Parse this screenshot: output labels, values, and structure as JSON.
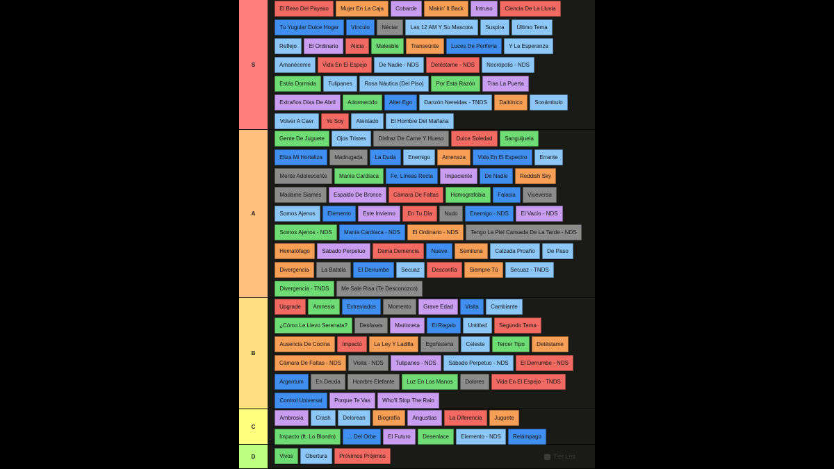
{
  "watermark": "Tier List",
  "tiers": [
    {
      "label": "S",
      "color": "#ff7f7f",
      "rows": [
        [
          [
            "El Beso Del Payaso",
            "red"
          ],
          [
            "Mujer En La Caja",
            "orange"
          ],
          [
            "Cobarde",
            "lavender"
          ],
          [
            "Makin' It Back",
            "orange"
          ],
          [
            "Intruso",
            "lavender"
          ],
          [
            "Ciencia De La Lluvia",
            "red"
          ]
        ],
        [
          [
            "Tu Yugular Dulce Hogar",
            "blue"
          ],
          [
            "Vínculo",
            "blue"
          ],
          [
            "Néctar",
            "gray"
          ],
          [
            "Las 12 AM Y Su Mascota",
            "lightblue"
          ],
          [
            "Suspira",
            "lightblue"
          ],
          [
            "Último Tema",
            "lightblue"
          ]
        ],
        [
          [
            "Reflejo",
            "lightblue"
          ],
          [
            "El Ordinario",
            "lavender"
          ],
          [
            "Alicia",
            "red"
          ],
          [
            "Maleable",
            "green"
          ],
          [
            "Transeúnte",
            "orange"
          ],
          [
            "Luces De Periferia",
            "blue"
          ],
          [
            "Y La Esperanza",
            "lightblue"
          ]
        ],
        [
          [
            "Amanéceme",
            "lightblue"
          ],
          [
            "Vida En El Espejo",
            "red"
          ],
          [
            "De Nadie - NDS",
            "lightblue"
          ],
          [
            "Detéstame - NDS",
            "red"
          ],
          [
            "Necrópolis - NDS",
            "lightblue"
          ]
        ],
        [
          [
            "Estás Dormida",
            "green"
          ],
          [
            "Tulipanes",
            "lightblue"
          ],
          [
            "Rosa Náutica (Del Piso)",
            "lightblue"
          ],
          [
            "Por Esta Razón",
            "green"
          ],
          [
            "Tras La Puerta",
            "lavender"
          ]
        ],
        [
          [
            "Extraños Días De Abril",
            "lavender"
          ],
          [
            "Adormecido",
            "green"
          ],
          [
            "Alter Ego",
            "blue"
          ],
          [
            "Danzón Nereidas - TNDS",
            "lightblue"
          ],
          [
            "Daltónico",
            "orange"
          ],
          [
            "Sonámbulo",
            "lightblue"
          ]
        ],
        [
          [
            "Volver A Caer",
            "lightblue"
          ],
          [
            "Yo Soy",
            "red"
          ],
          [
            "Atentado",
            "lightblue"
          ],
          [
            "El Hombre Del Mañana",
            "lightblue"
          ]
        ]
      ]
    },
    {
      "label": "A",
      "color": "#ffbf7f",
      "rows": [
        [
          [
            "Gente De Juguete",
            "green"
          ],
          [
            "Ojos Tristes",
            "lightblue"
          ],
          [
            "Disfraz De Carne Y Hueso",
            "gray"
          ],
          [
            "Dulce Soledad",
            "red"
          ],
          [
            "Sanguijuela",
            "green"
          ]
        ],
        [
          [
            "Eliza Mi Hortaliza",
            "blue"
          ],
          [
            "Madrugada",
            "gray"
          ],
          [
            "La Duda",
            "blue"
          ],
          [
            "Enemigo",
            "lightblue"
          ],
          [
            "Amenaza",
            "orange"
          ],
          [
            "Vida En El Espectro",
            "blue"
          ],
          [
            "Errante",
            "lightblue"
          ]
        ],
        [
          [
            "Mente Adolescente",
            "gray"
          ],
          [
            "Manía Cardíaca",
            "green"
          ],
          [
            "Fe, Líneas Recta",
            "blue"
          ],
          [
            "Impaciente",
            "lavender"
          ],
          [
            "De Nadie",
            "blue"
          ],
          [
            "Reddish Sky",
            "orange"
          ]
        ],
        [
          [
            "Madame Siamés",
            "gray"
          ],
          [
            "Espaldo De Bronce",
            "lavender"
          ],
          [
            "Cámara De Faltas",
            "red"
          ],
          [
            "Homografobia",
            "green"
          ],
          [
            "Falacia",
            "blue"
          ],
          [
            "Viceversa",
            "gray"
          ]
        ],
        [
          [
            "Somos Ajenos",
            "lightblue"
          ],
          [
            "Elemento",
            "blue"
          ],
          [
            "Este Invierno",
            "lavender"
          ],
          [
            "En Tu Día",
            "red"
          ],
          [
            "Nudo",
            "gray"
          ],
          [
            "Enemigo - NDS",
            "blue"
          ],
          [
            "El Vacío - NDS",
            "lavender"
          ]
        ],
        [
          [
            "Somos Ajenos - NDS",
            "green"
          ],
          [
            "Manía Cardíaca - NDS",
            "blue"
          ],
          [
            "El Ordinario - NDS",
            "orange"
          ],
          [
            "Tengo La Piel Cansada De La Tarde - NDS",
            "gray"
          ]
        ],
        [
          [
            "Hematófago",
            "orange"
          ],
          [
            "Sábado Perpetuo",
            "lavender"
          ],
          [
            "Dama Demencia",
            "red"
          ],
          [
            "Nueve",
            "blue"
          ],
          [
            "Semiluna",
            "orange"
          ],
          [
            "Calzada Proaño",
            "lightblue"
          ],
          [
            "De Paso",
            "lightblue"
          ]
        ],
        [
          [
            "Divergencia",
            "orange"
          ],
          [
            "La Batalla",
            "gray"
          ],
          [
            "El Derrumbe",
            "blue"
          ],
          [
            "Secuaz",
            "lightblue"
          ],
          [
            "Desconfía",
            "red"
          ],
          [
            "Siempre Tú",
            "orange"
          ],
          [
            "Secuaz - TNDS",
            "lightblue"
          ]
        ],
        [
          [
            "Divergencia - TNDS",
            "green"
          ],
          [
            "Me Sale Risa (Te Desconozco)",
            "gray"
          ]
        ]
      ]
    },
    {
      "label": "B",
      "color": "#ffdf7f",
      "rows": [
        [
          [
            "Upgrade",
            "red"
          ],
          [
            "Amnesia",
            "green"
          ],
          [
            "Extraviados",
            "blue"
          ],
          [
            "Momento",
            "gray"
          ],
          [
            "Grave Edad",
            "lavender"
          ],
          [
            "Visita",
            "blue"
          ],
          [
            "Cambiante",
            "lightblue"
          ]
        ],
        [
          [
            "¿Cómo Le Llevo Serenata?",
            "green"
          ],
          [
            "Desfases",
            "gray"
          ],
          [
            "Marioneta",
            "lavender"
          ],
          [
            "El Regalo",
            "blue"
          ],
          [
            "Untitled",
            "lightblue"
          ],
          [
            "Segundo Tema",
            "red"
          ]
        ],
        [
          [
            "Ausencia De Cocina",
            "orange"
          ],
          [
            "Impacto",
            "red"
          ],
          [
            "La Ley Y Ladilla",
            "orange"
          ],
          [
            "Egohisteria",
            "gray"
          ],
          [
            "Celeste",
            "lightblue"
          ],
          [
            "Tercer Tipo",
            "green"
          ],
          [
            "Detéstame",
            "orange"
          ]
        ],
        [
          [
            "Cámara De Faltas - NDS",
            "orange"
          ],
          [
            "Visita - NDS",
            "gray"
          ],
          [
            "Tulipanes - NDS",
            "lavender"
          ],
          [
            "Sábado Perpetuo - NDS",
            "lightblue"
          ],
          [
            "El Derrumbe - NDS",
            "red"
          ]
        ],
        [
          [
            "Argentum",
            "blue"
          ],
          [
            "En Deuda",
            "gray"
          ],
          [
            "Hombre Elefante",
            "gray"
          ],
          [
            "Luz En Los Manos",
            "green"
          ],
          [
            "Dolores",
            "gray"
          ],
          [
            "Vida En El Espejo - TNDS",
            "red"
          ]
        ],
        [
          [
            "Control Universal",
            "blue"
          ],
          [
            "Porque Te Vas",
            "lavender"
          ],
          [
            "Who'll Stop The Rain",
            "lavender"
          ]
        ]
      ]
    },
    {
      "label": "C",
      "color": "#ffff7f",
      "rows": [
        [
          [
            "Ambrosía",
            "lavender"
          ],
          [
            "Crash",
            "lightblue"
          ],
          [
            "Delorean",
            "lightblue"
          ],
          [
            "Biografía",
            "orange"
          ],
          [
            "Angustias",
            "lavender"
          ],
          [
            "La Diferencia",
            "red"
          ],
          [
            "Juguete",
            "orange"
          ]
        ],
        [
          [
            "Impacto (ft. Lo Blondo)",
            "green"
          ],
          [
            "... Del Orbe",
            "blue"
          ],
          [
            "El Futuro",
            "lavender"
          ],
          [
            "Desenlace",
            "green"
          ],
          [
            "Elemento - NDS",
            "lightblue"
          ],
          [
            "Relámpago",
            "blue"
          ]
        ]
      ]
    },
    {
      "label": "D",
      "color": "#bfff7f",
      "rows": [
        [
          [
            "Vivos",
            "green"
          ],
          [
            "Obertura",
            "lightblue"
          ],
          [
            "Próximos Prójimos",
            "red"
          ]
        ]
      ]
    }
  ]
}
